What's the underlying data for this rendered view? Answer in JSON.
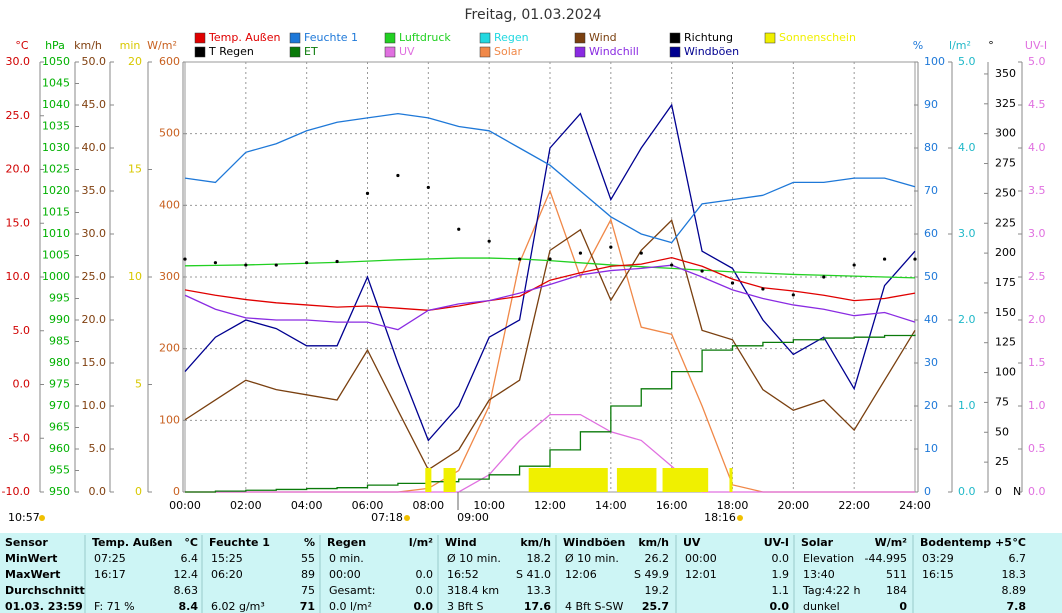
{
  "chart_data": {
    "type": "line",
    "title": "Freitag, 01.03.2024",
    "xlim": [
      0,
      24
    ],
    "xticks": [
      {
        "value": 0,
        "label": "00:00"
      },
      {
        "value": 2,
        "label": "02:00"
      },
      {
        "value": 4,
        "label": "04:00"
      },
      {
        "value": 6,
        "label": "06:00"
      },
      {
        "value": 8,
        "label": "08:00"
      },
      {
        "value": 10,
        "label": "10:00"
      },
      {
        "value": 12,
        "label": "12:00"
      },
      {
        "value": 14,
        "label": "14:00"
      },
      {
        "value": 16,
        "label": "16:00"
      },
      {
        "value": 18,
        "label": "18:00"
      },
      {
        "value": 20,
        "label": "20:00"
      },
      {
        "value": 22,
        "label": "22:00"
      },
      {
        "value": 24,
        "label": "24:00"
      }
    ],
    "grid": true,
    "axes": {
      "temp": {
        "unit": "°C",
        "color": "#d00000",
        "side": "left",
        "lim": [
          -10,
          30
        ],
        "ticks": [
          {
            "value": -10,
            "label": "-10.0"
          },
          {
            "value": -5,
            "label": "-5.0"
          },
          {
            "value": 0,
            "label": "0.0"
          },
          {
            "value": 5,
            "label": "5.0"
          },
          {
            "value": 10,
            "label": "10.0"
          },
          {
            "value": 15,
            "label": "15.0"
          },
          {
            "value": 20,
            "label": "20.0"
          },
          {
            "value": 25,
            "label": "25.0"
          },
          {
            "value": 30,
            "label": "30.0"
          }
        ]
      },
      "pressure": {
        "unit": "hPa",
        "color": "#00b000",
        "side": "left",
        "lim": [
          950,
          1050
        ],
        "ticks": [
          950,
          955,
          960,
          965,
          970,
          975,
          980,
          985,
          990,
          995,
          1000,
          1005,
          1010,
          1015,
          1020,
          1025,
          1030,
          1035,
          1040,
          1045,
          1050
        ]
      },
      "speed": {
        "unit": "km/h",
        "color": "#804010",
        "side": "left",
        "lim": [
          0,
          50
        ],
        "ticks": [
          {
            "value": 0,
            "label": "0.0"
          },
          {
            "value": 5,
            "label": "5.0"
          },
          {
            "value": 10,
            "label": "10.0"
          },
          {
            "value": 15,
            "label": "15.0"
          },
          {
            "value": 20,
            "label": "20.0"
          },
          {
            "value": 25,
            "label": "25.0"
          },
          {
            "value": 30,
            "label": "30.0"
          },
          {
            "value": 35,
            "label": "35.0"
          },
          {
            "value": 40,
            "label": "40.0"
          },
          {
            "value": 45,
            "label": "45.0"
          },
          {
            "value": 50,
            "label": "50.0"
          }
        ]
      },
      "minutes": {
        "unit": "min",
        "color": "#d8c800",
        "side": "left",
        "lim": [
          0,
          20
        ],
        "ticks": [
          0,
          5,
          10,
          15,
          20
        ]
      },
      "solar": {
        "unit": "W/m²",
        "color": "#c86020",
        "side": "left",
        "lim": [
          0,
          600
        ],
        "ticks": [
          0,
          100,
          200,
          300,
          400,
          500,
          600
        ]
      },
      "humidity": {
        "unit": "%",
        "color": "#1e78d8",
        "side": "right",
        "lim": [
          0,
          100
        ],
        "ticks": [
          0,
          10,
          20,
          30,
          40,
          50,
          60,
          70,
          80,
          90,
          100
        ]
      },
      "rain": {
        "unit": "l/m²",
        "color": "#20b8c8",
        "side": "right",
        "lim": [
          0,
          5
        ],
        "ticks": [
          {
            "value": 0,
            "label": "0.0"
          },
          {
            "value": 1,
            "label": "1.0"
          },
          {
            "value": 2,
            "label": "2.0"
          },
          {
            "value": 3,
            "label": "3.0"
          },
          {
            "value": 4,
            "label": "4.0"
          },
          {
            "value": 5,
            "label": "5.0"
          }
        ]
      },
      "direction": {
        "unit": "°",
        "color": "#000000",
        "side": "right",
        "lim": [
          0,
          360
        ],
        "ticks": [
          0,
          25,
          50,
          75,
          100,
          125,
          150,
          175,
          200,
          225,
          250,
          275,
          300,
          325,
          350
        ],
        "zero_label": "N"
      },
      "uv": {
        "unit": "UV-I",
        "color": "#e070e0",
        "side": "right",
        "lim": [
          0,
          5
        ],
        "ticks": [
          {
            "value": 0,
            "label": "0.0"
          },
          {
            "value": 0.5,
            "label": "0.5"
          },
          {
            "value": 1,
            "label": "1.0"
          },
          {
            "value": 1.5,
            "label": "1.5"
          },
          {
            "value": 2,
            "label": "2.0"
          },
          {
            "value": 2.5,
            "label": "2.5"
          },
          {
            "value": 3,
            "label": "3.0"
          },
          {
            "value": 3.5,
            "label": "3.5"
          },
          {
            "value": 4,
            "label": "4.0"
          },
          {
            "value": 4.5,
            "label": "4.5"
          },
          {
            "value": 5,
            "label": "5.0"
          }
        ]
      }
    },
    "x": [
      0,
      1,
      2,
      3,
      4,
      5,
      6,
      7,
      8,
      9,
      10,
      11,
      12,
      13,
      14,
      15,
      16,
      17,
      18,
      19,
      20,
      21,
      22,
      23,
      24
    ],
    "series": [
      {
        "name": "Temp. Außen",
        "color": "#e00000",
        "axis": "temp",
        "style": "line",
        "values": [
          8.8,
          8.3,
          7.9,
          7.6,
          7.4,
          7.2,
          7.3,
          7.1,
          6.9,
          7.3,
          7.8,
          8.2,
          9.7,
          10.4,
          11.0,
          11.2,
          11.8,
          11.0,
          9.8,
          9.0,
          8.7,
          8.3,
          7.8,
          8.0,
          8.5
        ]
      },
      {
        "name": "Feuchte 1",
        "color": "#1e78d8",
        "axis": "humidity",
        "style": "line",
        "values": [
          73,
          72,
          79,
          81,
          84,
          86,
          87,
          88,
          87,
          85,
          84,
          80,
          76,
          70,
          64,
          60,
          58,
          67,
          68,
          69,
          72,
          72,
          73,
          73,
          71
        ]
      },
      {
        "name": "Luftdruck",
        "color": "#22d022",
        "axis": "pressure",
        "style": "line",
        "values": [
          1002.6,
          1002.7,
          1002.8,
          1003.0,
          1003.2,
          1003.4,
          1003.7,
          1004.0,
          1004.2,
          1004.4,
          1004.4,
          1004.2,
          1003.8,
          1003.3,
          1002.8,
          1002.4,
          1002.0,
          1001.6,
          1001.2,
          1000.9,
          1000.6,
          1000.4,
          1000.2,
          1000.0,
          999.8
        ]
      },
      {
        "name": "Regen",
        "color": "#22d8e0",
        "axis": "rain",
        "style": "none"
      },
      {
        "name": "Wind",
        "color": "#7a4010",
        "axis": "speed",
        "style": "line",
        "values": [
          8.4,
          10.7,
          13.0,
          11.9,
          11.3,
          10.7,
          16.5,
          9.5,
          2.6,
          4.9,
          10.7,
          13.0,
          28.1,
          30.5,
          22.3,
          28.1,
          31.6,
          18.8,
          17.7,
          11.9,
          9.5,
          10.7,
          7.2,
          13.0,
          18.8
        ]
      },
      {
        "name": "Richtung",
        "color": "#000000",
        "axis": "direction",
        "style": "dots",
        "values": [
          195,
          192,
          190,
          190,
          192,
          193,
          250,
          265,
          255,
          220,
          210,
          195,
          195,
          200,
          205,
          200,
          190,
          185,
          175,
          170,
          165,
          180,
          190,
          195,
          195
        ]
      },
      {
        "name": "Sonnenschein",
        "color": "#f0f000",
        "axis": "minutes",
        "style": "bars",
        "intervals": [
          [
            7.9,
            8.1
          ],
          [
            8.5,
            8.9
          ],
          [
            11.3,
            13.9
          ],
          [
            14.2,
            15.5
          ],
          [
            15.7,
            17.2
          ],
          [
            17.9,
            18.0
          ]
        ]
      },
      {
        "name": "T Regen",
        "color": "#000000",
        "axis": "rain",
        "style": "none"
      },
      {
        "name": "ET",
        "color": "#0a7a0a",
        "axis": "rain",
        "style": "step",
        "values": [
          0,
          0.01,
          0.02,
          0.03,
          0.04,
          0.05,
          0.08,
          0.1,
          0.12,
          0.15,
          0.2,
          0.3,
          0.49,
          0.7,
          1.0,
          1.2,
          1.4,
          1.65,
          1.7,
          1.74,
          1.77,
          1.79,
          1.8,
          1.82,
          1.83
        ]
      },
      {
        "name": "UV",
        "color": "#e070e0",
        "axis": "uv",
        "style": "line",
        "values": [
          0,
          0,
          0,
          0,
          0,
          0,
          0,
          0,
          0,
          0,
          0.2,
          0.6,
          0.9,
          0.9,
          0.7,
          0.6,
          0.3,
          0,
          0,
          0,
          0,
          0,
          0,
          0,
          0
        ]
      },
      {
        "name": "Solar",
        "color": "#f08848",
        "axis": "solar",
        "style": "line",
        "values": [
          0,
          0,
          0,
          0,
          0,
          0,
          0,
          0,
          5,
          30,
          120,
          320,
          420,
          300,
          380,
          230,
          220,
          120,
          10,
          0,
          0,
          0,
          0,
          0,
          0
        ]
      },
      {
        "name": "Windchill",
        "color": "#8a2be2",
        "axis": "temp",
        "style": "line",
        "values": [
          8.3,
          7.0,
          6.2,
          6.0,
          6.0,
          5.8,
          5.8,
          5.1,
          6.9,
          7.5,
          7.8,
          8.5,
          9.3,
          10.2,
          10.6,
          10.8,
          11.1,
          10.0,
          8.8,
          8.0,
          7.4,
          7.0,
          6.4,
          6.7,
          5.8
        ]
      },
      {
        "name": "Windböen",
        "color": "#000090",
        "axis": "speed",
        "style": "line",
        "values": [
          14,
          18,
          20,
          19,
          17,
          17,
          25,
          15,
          6,
          10,
          18,
          20,
          40,
          44,
          34,
          40,
          45,
          28,
          26,
          20,
          16,
          18,
          12,
          24,
          28
        ]
      }
    ],
    "annotations": [
      "10:57",
      "07:18",
      "09:00",
      "18:16"
    ]
  },
  "table": {
    "header": [
      "Sensor",
      "Temp. Außen",
      "°C",
      "Feuchte 1",
      "%",
      "Regen",
      "l/m²",
      "Wind",
      "km/h",
      "Windböen",
      "km/h",
      "UV",
      "UV-I",
      "Solar",
      "W/m²",
      "Bodentemp +5",
      "°C"
    ],
    "rows": [
      [
        "MinWert",
        "07:25",
        "6.4",
        "15:25",
        "55",
        "0 min.",
        null,
        "Ø 10 min.",
        "18.2",
        "Ø 10 min.",
        "26.2",
        "00:00",
        "0.0",
        "Elevation",
        "-44.995",
        "03:29",
        "6.7"
      ],
      [
        "MaxWert",
        "16:17",
        "12.4",
        "06:20",
        "89",
        "00:00",
        "0.0",
        "16:52",
        "S 41.0",
        "12:06",
        "S 49.9",
        "12:01",
        "1.9",
        "13:40",
        "511",
        "16:15",
        "18.3"
      ],
      [
        "Durchschnitt",
        null,
        "8.63",
        null,
        "75",
        "Gesamt:",
        "0.0",
        "318.4 km",
        "13.3",
        null,
        "19.2",
        null,
        "1.1",
        "Tag:4:22 h",
        "184",
        null,
        "8.89"
      ],
      [
        "01.03. 23:59",
        "F: 71 %",
        "8.4",
        "6.02 g/m³",
        "71",
        "0.0 l/m²",
        "0.0",
        "3 Bft S",
        "17.6",
        "4 Bft S-SW",
        "25.7",
        null,
        "0.0",
        "dunkel",
        "0",
        null,
        "7.8"
      ]
    ]
  }
}
